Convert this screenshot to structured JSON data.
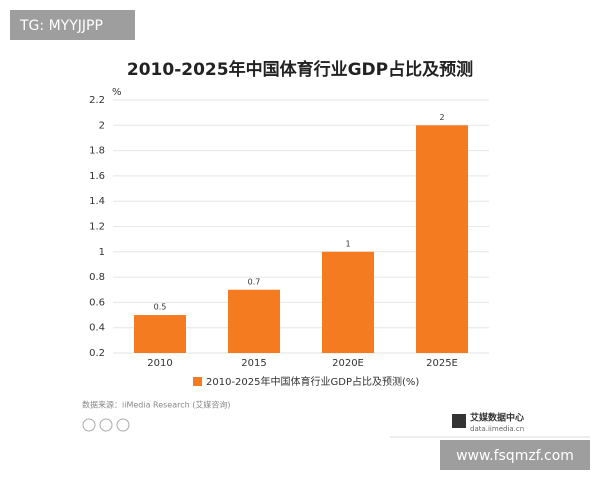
{
  "chart_data": {
    "type": "bar",
    "title": "2010-2025年中国体育行业GDP占比及预测",
    "y_unit": "%",
    "categories": [
      "2010",
      "2015",
      "2020E",
      "2025E"
    ],
    "series": [
      {
        "name": "2010-2025年中国体育行业GDP占比及预测(%)",
        "color": "#f47b20",
        "values": [
          0.5,
          0.7,
          1,
          2
        ]
      }
    ],
    "ylim": [
      0.2,
      2.2
    ],
    "yticks": [
      0.2,
      0.4,
      0.6,
      0.8,
      1,
      1.2,
      1.4,
      1.6,
      1.8,
      2,
      2.2
    ],
    "grid": true,
    "legend": "bottom"
  },
  "source": "数据来源：iiMedia Research (艾媒咨询)",
  "logo": {
    "name": "艾媒数据中心",
    "url": "data.iimedia.cn"
  },
  "watermarks": {
    "top": "TG: MYYJJPP",
    "bottom": "www.fsqmzf.com"
  }
}
